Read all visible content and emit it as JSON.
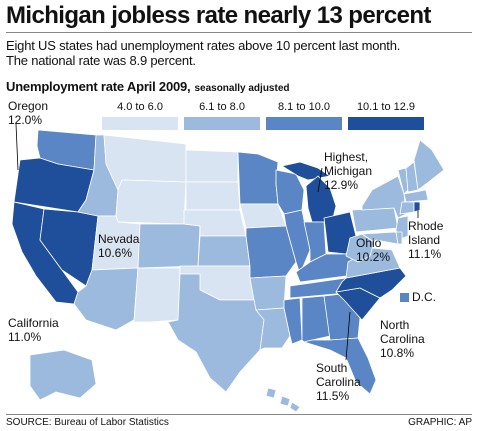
{
  "headline": "Michigan jobless rate nearly 13 percent",
  "subtitle_line1": "Eight US states had unemployment rates above 10 percent last month.",
  "subtitle_line2": "The national rate was 8.9 percent.",
  "map_title": "Unemployment rate April 2009,",
  "map_title_sub": "seasonally adjusted",
  "legend": [
    {
      "label": "4.0 to 6.0",
      "color": "#d8e4f2"
    },
    {
      "label": "6.1 to 8.0",
      "color": "#9cb9de"
    },
    {
      "label": "8.1 to 10.0",
      "color": "#5a86c5"
    },
    {
      "label": "10.1 to 12.9",
      "color": "#1f4f9a"
    }
  ],
  "callouts": {
    "oregon": {
      "name": "Oregon",
      "value": "12.0%"
    },
    "highest": {
      "name1": "Highest,",
      "name2": "Michigan",
      "value": "12.9%"
    },
    "nevada": {
      "name": "Nevada",
      "value": "10.6%"
    },
    "ohio": {
      "name": "Ohio",
      "value": "10.2%"
    },
    "rhode_island": {
      "name1": "Rhode",
      "name2": "Island",
      "value": "11.1%"
    },
    "california": {
      "name": "California",
      "value": "11.0%"
    },
    "dc": {
      "name": "D.C."
    },
    "north_carolina": {
      "name1": "North",
      "name2": "Carolina",
      "value": "10.8%"
    },
    "south_carolina": {
      "name1": "South",
      "name2": "Carolina",
      "value": "11.5%"
    }
  },
  "source": "SOURCE: Bureau of Labor Statistics",
  "credit": "GRAPHIC: AP",
  "state_classes": {
    "WA": "8.1 to 10.0",
    "OR": "10.1 to 12.9",
    "CA": "10.1 to 12.9",
    "NV": "10.1 to 12.9",
    "ID": "6.1 to 8.0",
    "MT": "4.0 to 6.0",
    "WY": "4.0 to 6.0",
    "UT": "4.0 to 6.0",
    "CO": "6.1 to 8.0",
    "AZ": "6.1 to 8.0",
    "NM": "4.0 to 6.0",
    "ND": "4.0 to 6.0",
    "SD": "4.0 to 6.0",
    "NE": "4.0 to 6.0",
    "KS": "6.1 to 8.0",
    "OK": "4.0 to 6.0",
    "TX": "6.1 to 8.0",
    "MN": "8.1 to 10.0",
    "IA": "4.0 to 6.0",
    "MO": "8.1 to 10.0",
    "AR": "6.1 to 8.0",
    "LA": "6.1 to 8.0",
    "WI": "8.1 to 10.0",
    "IL": "8.1 to 10.0",
    "MI": "10.1 to 12.9",
    "IN": "8.1 to 10.0",
    "OH": "10.1 to 12.9",
    "KY": "8.1 to 10.0",
    "TN": "8.1 to 10.0",
    "MS": "8.1 to 10.0",
    "AL": "8.1 to 10.0",
    "GA": "8.1 to 10.0",
    "FL": "8.1 to 10.0",
    "SC": "10.1 to 12.9",
    "NC": "10.1 to 12.9",
    "VA": "6.1 to 8.0",
    "WV": "6.1 to 8.0",
    "PA": "6.1 to 8.0",
    "NY": "6.1 to 8.0",
    "VT": "6.1 to 8.0",
    "NH": "6.1 to 8.0",
    "ME": "6.1 to 8.0",
    "MA": "6.1 to 8.0",
    "RI": "10.1 to 12.9",
    "CT": "6.1 to 8.0",
    "NJ": "6.1 to 8.0",
    "DE": "6.1 to 8.0",
    "MD": "6.1 to 8.0",
    "DC": "8.1 to 10.0",
    "AK": "6.1 to 8.0",
    "HI": "6.1 to 8.0"
  }
}
